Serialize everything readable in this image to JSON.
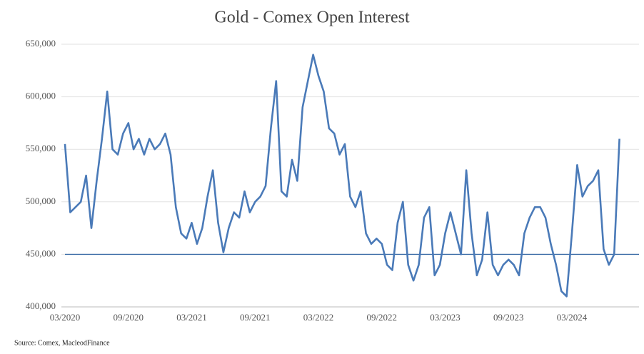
{
  "chart_data": {
    "type": "line",
    "title": "Gold - Comex Open Interest",
    "source": "Source: Comex,  MacleodFinance",
    "categories": [
      "03/2020",
      null,
      null,
      null,
      null,
      null,
      null,
      null,
      null,
      null,
      null,
      null,
      "09/2020",
      null,
      null,
      null,
      null,
      null,
      null,
      null,
      null,
      null,
      null,
      null,
      "03/2021",
      null,
      null,
      null,
      null,
      null,
      null,
      null,
      null,
      null,
      null,
      null,
      "09/2021",
      null,
      null,
      null,
      null,
      null,
      null,
      null,
      null,
      null,
      null,
      null,
      "03/2022",
      null,
      null,
      null,
      null,
      null,
      null,
      null,
      null,
      null,
      null,
      null,
      "09/2022",
      null,
      null,
      null,
      null,
      null,
      null,
      null,
      null,
      null,
      null,
      null,
      "03/2023",
      null,
      null,
      null,
      null,
      null,
      null,
      null,
      null,
      null,
      null,
      null,
      "09/2023",
      null,
      null,
      null,
      null,
      null,
      null,
      null,
      null,
      null,
      null,
      null,
      "03/2024",
      null,
      null,
      null,
      null,
      null,
      null,
      null,
      null,
      null
    ],
    "series": [
      {
        "name": "Gold - Comex Open Interest",
        "color": "#4a7ab8",
        "values": [
          555000,
          490000,
          495000,
          500000,
          525000,
          475000,
          520000,
          560000,
          605000,
          550000,
          545000,
          565000,
          575000,
          550000,
          560000,
          545000,
          560000,
          550000,
          555000,
          565000,
          545000,
          495000,
          470000,
          465000,
          480000,
          460000,
          475000,
          505000,
          530000,
          480000,
          452000,
          475000,
          490000,
          485000,
          510000,
          490000,
          500000,
          505000,
          515000,
          570000,
          615000,
          510000,
          505000,
          540000,
          520000,
          590000,
          615000,
          640000,
          620000,
          605000,
          570000,
          565000,
          545000,
          555000,
          505000,
          495000,
          510000,
          470000,
          460000,
          465000,
          460000,
          440000,
          435000,
          480000,
          500000,
          440000,
          425000,
          440000,
          485000,
          495000,
          430000,
          440000,
          470000,
          490000,
          470000,
          450000,
          530000,
          470000,
          430000,
          445000,
          490000,
          440000,
          430000,
          440000,
          445000,
          440000,
          430000,
          470000,
          485000,
          495000,
          495000,
          485000,
          460000,
          440000,
          415000,
          410000,
          470000,
          535000,
          505000,
          515000,
          520000,
          530000,
          455000,
          440000,
          450000,
          560000
        ]
      }
    ],
    "reference_line": 450000,
    "reference_color": "#3f6fa8",
    "ylim": [
      400000,
      650000
    ],
    "yticks": [
      {
        "value": 400000,
        "label": "400,000"
      },
      {
        "value": 450000,
        "label": "450,000"
      },
      {
        "value": 500000,
        "label": "500,000"
      },
      {
        "value": 550000,
        "label": "550,000"
      },
      {
        "value": 600000,
        "label": "600,000"
      },
      {
        "value": 650000,
        "label": "650,000"
      }
    ],
    "grid": true
  }
}
